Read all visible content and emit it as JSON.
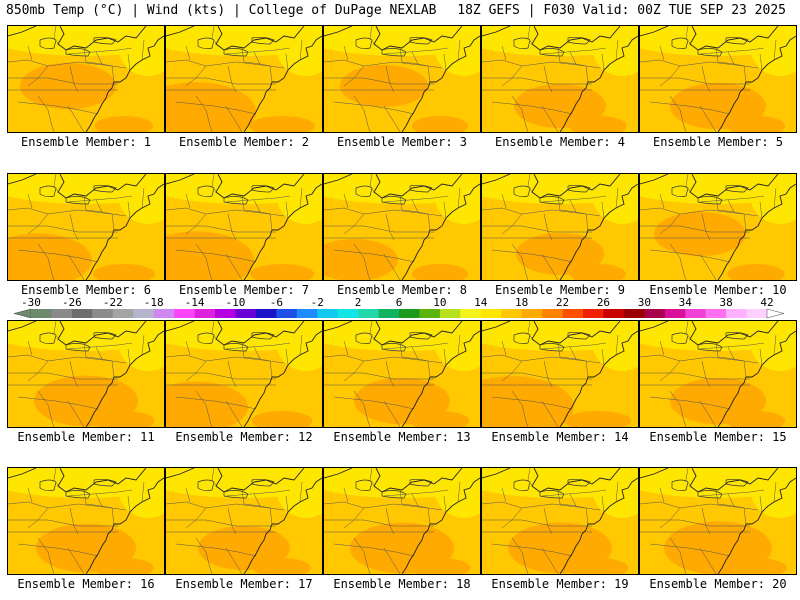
{
  "header": {
    "left": "850mb Temp (°C) | Wind (kts) | College of DuPage NEXLAB",
    "right": "18Z GEFS | F030 Valid: 00Z TUE SEP 23 2025"
  },
  "member_label_prefix": "Ensemble Member: ",
  "members": [
    {
      "id": "1",
      "warm_core": "center",
      "intensity": 0.6
    },
    {
      "id": "2",
      "warm_core": "south-west",
      "intensity": 0.9
    },
    {
      "id": "3",
      "warm_core": "center",
      "intensity": 0.5
    },
    {
      "id": "4",
      "warm_core": "south",
      "intensity": 0.55
    },
    {
      "id": "5",
      "warm_core": "south",
      "intensity": 0.6
    },
    {
      "id": "6",
      "warm_core": "south-west",
      "intensity": 0.75
    },
    {
      "id": "7",
      "warm_core": "south-west",
      "intensity": 0.85
    },
    {
      "id": "8",
      "warm_core": "south-west",
      "intensity": 0.5
    },
    {
      "id": "9",
      "warm_core": "south",
      "intensity": 0.5
    },
    {
      "id": "10",
      "warm_core": "center",
      "intensity": 0.55
    },
    {
      "id": "11",
      "warm_core": "south",
      "intensity": 0.7
    },
    {
      "id": "12",
      "warm_core": "south-west",
      "intensity": 0.7
    },
    {
      "id": "13",
      "warm_core": "south",
      "intensity": 0.6
    },
    {
      "id": "14",
      "warm_core": "south-west",
      "intensity": 0.95
    },
    {
      "id": "15",
      "warm_core": "south",
      "intensity": 0.6
    },
    {
      "id": "16",
      "warm_core": "south",
      "intensity": 0.65
    },
    {
      "id": "17",
      "warm_core": "south",
      "intensity": 0.55
    },
    {
      "id": "18",
      "warm_core": "south",
      "intensity": 0.7
    },
    {
      "id": "19",
      "warm_core": "south",
      "intensity": 0.7
    },
    {
      "id": "20",
      "warm_core": "south",
      "intensity": 0.75
    }
  ],
  "legend": {
    "min": -30,
    "max": 42,
    "step": 2,
    "label_step": 4,
    "ticks": [
      "-30",
      "-26",
      "-22",
      "-18",
      "-14",
      "-10",
      "-6",
      "-2",
      "2",
      "6",
      "10",
      "14",
      "18",
      "22",
      "26",
      "30",
      "34",
      "38",
      "42"
    ],
    "colors": [
      "#6e8a6e",
      "#8a8a8a",
      "#6e6e6e",
      "#8c8c8c",
      "#a4a4a4",
      "#b4b4cc",
      "#ce88f0",
      "#ff44ff",
      "#dc20dc",
      "#b400e0",
      "#6a00d6",
      "#1a12c8",
      "#1e50e6",
      "#1e8cff",
      "#10c8f0",
      "#10e6e6",
      "#20d8aa",
      "#10b460",
      "#1c9a1c",
      "#5ab40c",
      "#b8e01c",
      "#f4f41c",
      "#ffe600",
      "#ffc800",
      "#ffaa00",
      "#ff8200",
      "#ff5000",
      "#f02000",
      "#c80000",
      "#9a0000",
      "#a8004a",
      "#d8109a",
      "#f040d8",
      "#ff70f0",
      "#ffb0ff",
      "#ffd0ff"
    ],
    "field_colors": {
      "low": "#ffe600",
      "mid": "#ffc800",
      "high": "#ffaa00"
    }
  }
}
